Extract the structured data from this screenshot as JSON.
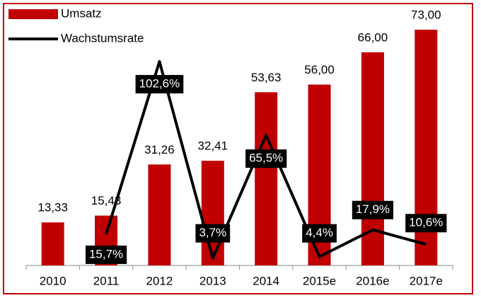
{
  "chart_data": {
    "type": "bar_line",
    "categories": [
      "2010",
      "2011",
      "2012",
      "2013",
      "2014",
      "2015e",
      "2016e",
      "2017e"
    ],
    "series": [
      {
        "name": "Umsatz",
        "type": "bar",
        "color": "#c00000",
        "values": [
          13.33,
          15.43,
          31.26,
          32.41,
          53.63,
          56.0,
          66.0,
          73.0
        ],
        "value_labels": [
          "13,33",
          "15,43",
          "31,26",
          "32,41",
          "53,63",
          "56,00",
          "66,00",
          "73,00"
        ]
      },
      {
        "name": "Wachstumsrate",
        "type": "line",
        "color": "#000000",
        "axis": "y2",
        "values": [
          null,
          15.7,
          102.6,
          3.7,
          65.5,
          4.4,
          17.9,
          10.6
        ],
        "value_labels": [
          null,
          "15,7%",
          "102,6%",
          "3,7%",
          "65,5%",
          "4,4%",
          "17,9%",
          "10,6%"
        ]
      }
    ],
    "ylim": [
      0,
      80
    ],
    "y2lim": [
      0,
      130
    ],
    "legend": "upper left"
  }
}
